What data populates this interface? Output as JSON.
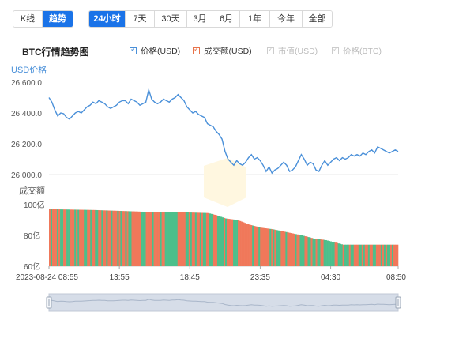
{
  "mode_tabs": [
    {
      "label": "K线",
      "active": false
    },
    {
      "label": "趋势",
      "active": true
    }
  ],
  "range_tabs": [
    {
      "label": "24小时",
      "active": true
    },
    {
      "label": "7天",
      "active": false
    },
    {
      "label": "30天",
      "active": false
    },
    {
      "label": "3月",
      "active": false
    },
    {
      "label": "6月",
      "active": false
    },
    {
      "label": "1年",
      "active": false
    },
    {
      "label": "今年",
      "active": false
    },
    {
      "label": "全部",
      "active": false
    }
  ],
  "legend": [
    {
      "label": "价格(USD)",
      "color": "#4a90d9",
      "enabled": true
    },
    {
      "label": "成交额(USD)",
      "color": "#e8734a",
      "enabled": true
    },
    {
      "label": "市值(USD)",
      "color": "#cccccc",
      "enabled": false
    },
    {
      "label": "价格(BTC)",
      "color": "#cccccc",
      "enabled": false
    }
  ],
  "colors": {
    "price_line": "#4a90d9",
    "volume_up": "#4cbf8b",
    "volume_down": "#f0785a",
    "axis_text": "#4a90d9",
    "navigator_fill": "#d6dde8"
  },
  "chart_data": {
    "type": "line",
    "title": "BTC行情趋势图",
    "price_axis_label": "USD价格",
    "volume_axis_label": "成交额",
    "x_ticks": [
      "2023-08-24 08:55",
      "13:55",
      "18:45",
      "23:35",
      "04:30",
      "08:50"
    ],
    "price": {
      "name": "价格(USD)",
      "ylim": [
        26000,
        26600
      ],
      "y_ticks": [
        "26,000.0",
        "26,200.0",
        "26,400.0",
        "26,600.0"
      ],
      "points": [
        [
          0,
          26500
        ],
        [
          0.2,
          26470
        ],
        [
          0.4,
          26420
        ],
        [
          0.6,
          26380
        ],
        [
          0.8,
          26400
        ],
        [
          1.0,
          26395
        ],
        [
          1.2,
          26370
        ],
        [
          1.4,
          26360
        ],
        [
          1.6,
          26380
        ],
        [
          1.8,
          26400
        ],
        [
          2.0,
          26410
        ],
        [
          2.2,
          26400
        ],
        [
          2.4,
          26420
        ],
        [
          2.6,
          26440
        ],
        [
          2.8,
          26450
        ],
        [
          3.0,
          26470
        ],
        [
          3.2,
          26460
        ],
        [
          3.4,
          26480
        ],
        [
          3.6,
          26470
        ],
        [
          3.8,
          26460
        ],
        [
          4.0,
          26440
        ],
        [
          4.2,
          26430
        ],
        [
          4.4,
          26440
        ],
        [
          4.6,
          26450
        ],
        [
          4.8,
          26470
        ],
        [
          5.0,
          26480
        ],
        [
          5.2,
          26480
        ],
        [
          5.4,
          26460
        ],
        [
          5.6,
          26490
        ],
        [
          5.8,
          26480
        ],
        [
          6.0,
          26470
        ],
        [
          6.2,
          26450
        ],
        [
          6.4,
          26460
        ],
        [
          6.6,
          26470
        ],
        [
          6.8,
          26550
        ],
        [
          7.0,
          26490
        ],
        [
          7.2,
          26470
        ],
        [
          7.4,
          26460
        ],
        [
          7.6,
          26470
        ],
        [
          7.8,
          26490
        ],
        [
          8.0,
          26480
        ],
        [
          8.2,
          26470
        ],
        [
          8.4,
          26490
        ],
        [
          8.6,
          26500
        ],
        [
          8.8,
          26520
        ],
        [
          9.0,
          26500
        ],
        [
          9.2,
          26480
        ],
        [
          9.4,
          26440
        ],
        [
          9.6,
          26420
        ],
        [
          9.8,
          26400
        ],
        [
          10.0,
          26410
        ],
        [
          10.2,
          26390
        ],
        [
          10.4,
          26380
        ],
        [
          10.6,
          26370
        ],
        [
          10.8,
          26330
        ],
        [
          11.0,
          26320
        ],
        [
          11.2,
          26310
        ],
        [
          11.4,
          26280
        ],
        [
          11.6,
          26260
        ],
        [
          11.8,
          26230
        ],
        [
          12.0,
          26150
        ],
        [
          12.2,
          26100
        ],
        [
          12.4,
          26080
        ],
        [
          12.6,
          26060
        ],
        [
          12.8,
          26090
        ],
        [
          13.0,
          26070
        ],
        [
          13.2,
          26060
        ],
        [
          13.4,
          26080
        ],
        [
          13.6,
          26110
        ],
        [
          13.8,
          26130
        ],
        [
          14.0,
          26100
        ],
        [
          14.2,
          26110
        ],
        [
          14.4,
          26090
        ],
        [
          14.6,
          26060
        ],
        [
          14.8,
          26020
        ],
        [
          15.0,
          26050
        ],
        [
          15.2,
          26010
        ],
        [
          15.4,
          26030
        ],
        [
          15.6,
          26040
        ],
        [
          15.8,
          26060
        ],
        [
          16.0,
          26080
        ],
        [
          16.2,
          26060
        ],
        [
          16.4,
          26020
        ],
        [
          16.6,
          26030
        ],
        [
          16.8,
          26050
        ],
        [
          17.0,
          26090
        ],
        [
          17.2,
          26130
        ],
        [
          17.4,
          26100
        ],
        [
          17.6,
          26060
        ],
        [
          17.8,
          26080
        ],
        [
          18.0,
          26070
        ],
        [
          18.2,
          26030
        ],
        [
          18.4,
          26020
        ],
        [
          18.6,
          26060
        ],
        [
          18.8,
          26090
        ],
        [
          19.0,
          26060
        ],
        [
          19.2,
          26080
        ],
        [
          19.4,
          26100
        ],
        [
          19.6,
          26110
        ],
        [
          19.8,
          26090
        ],
        [
          20.0,
          26110
        ],
        [
          20.2,
          26100
        ],
        [
          20.4,
          26110
        ],
        [
          20.6,
          26130
        ],
        [
          20.8,
          26120
        ],
        [
          21.0,
          26130
        ],
        [
          21.2,
          26120
        ],
        [
          21.4,
          26140
        ],
        [
          21.6,
          26130
        ],
        [
          21.8,
          26150
        ],
        [
          22.0,
          26160
        ],
        [
          22.2,
          26140
        ],
        [
          22.4,
          26180
        ],
        [
          22.6,
          26170
        ],
        [
          22.8,
          26160
        ],
        [
          23.0,
          26150
        ],
        [
          23.2,
          26140
        ],
        [
          23.4,
          26150
        ],
        [
          23.6,
          26160
        ],
        [
          23.8,
          26150
        ]
      ]
    },
    "volume": {
      "name": "成交额(USD)",
      "ylim": [
        60,
        100
      ],
      "y_ticks": [
        "60亿",
        "80亿",
        "100亿"
      ],
      "unit": "亿",
      "profile": [
        [
          0,
          97
        ],
        [
          3,
          96.5
        ],
        [
          6,
          95.5
        ],
        [
          7.4,
          95
        ],
        [
          9,
          95
        ],
        [
          10.8,
          94.5
        ],
        [
          11.4,
          93
        ],
        [
          12.0,
          91
        ],
        [
          12.8,
          90
        ],
        [
          13.6,
          87
        ],
        [
          14.4,
          85
        ],
        [
          15.2,
          84
        ],
        [
          16.2,
          82
        ],
        [
          17.2,
          80
        ],
        [
          18.0,
          78
        ],
        [
          18.8,
          77
        ],
        [
          20.0,
          74
        ],
        [
          21.6,
          74
        ],
        [
          23.8,
          74
        ]
      ]
    }
  }
}
